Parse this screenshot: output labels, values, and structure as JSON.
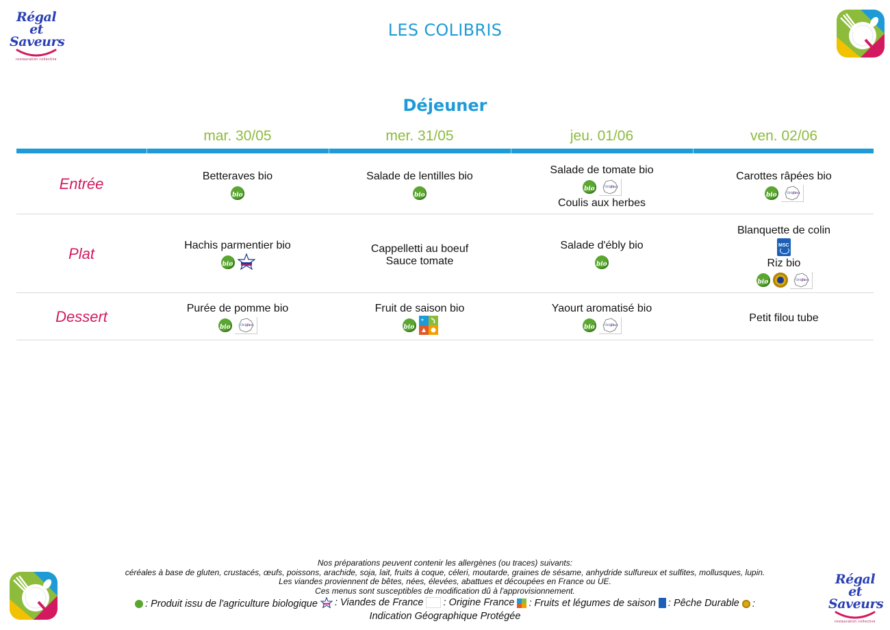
{
  "header": {
    "title": "LES COLIBRIS",
    "brand_line1": "Régal et",
    "brand_line2": "Saveurs",
    "brand_tagline": "restauration collective"
  },
  "meal": {
    "title": "Déjeuner"
  },
  "days": [
    "mar. 30/05",
    "mer. 31/05",
    "jeu. 01/06",
    "ven. 02/06"
  ],
  "courses": [
    "Entrée",
    "Plat",
    "Dessert"
  ],
  "rows": [
    {
      "course": "Entrée",
      "cells": [
        {
          "items": [
            {
              "text": "Betteraves bio",
              "icons": [
                "bio-icon"
              ]
            }
          ]
        },
        {
          "items": [
            {
              "text": "Salade de lentilles bio",
              "icons": [
                "bio-icon"
              ]
            }
          ]
        },
        {
          "items": [
            {
              "text": "Salade de tomate bio",
              "icons": [
                "bio-icon",
                "origine-france-icon"
              ]
            },
            {
              "text": "Coulis aux herbes",
              "icons": []
            }
          ]
        },
        {
          "items": [
            {
              "text": "Carottes râpées bio",
              "icons": [
                "bio-icon",
                "origine-france-icon"
              ]
            }
          ]
        }
      ]
    },
    {
      "course": "Plat",
      "cells": [
        {
          "items": [
            {
              "text": "Hachis parmentier bio",
              "icons": [
                "bio-icon",
                "viandes-de-france-icon"
              ]
            }
          ]
        },
        {
          "items": [
            {
              "text": "Cappelletti au boeuf",
              "icons": []
            },
            {
              "text": "Sauce tomate",
              "icons": []
            }
          ]
        },
        {
          "items": [
            {
              "text": "Salade d'ébly bio",
              "icons": [
                "bio-icon"
              ]
            }
          ]
        },
        {
          "items": [
            {
              "text": "Blanquette de colin",
              "icons": [
                "msc-peche-durable-icon"
              ]
            },
            {
              "text": "Riz bio",
              "icons": [
                "bio-icon",
                "igp-icon",
                "origine-france-icon"
              ]
            }
          ]
        }
      ]
    },
    {
      "course": "Dessert",
      "cells": [
        {
          "items": [
            {
              "text": "Purée de pomme bio",
              "icons": [
                "bio-icon",
                "origine-france-icon"
              ]
            }
          ]
        },
        {
          "items": [
            {
              "text": "Fruit de saison bio",
              "icons": [
                "bio-icon",
                "fruits-legumes-saison-icon"
              ]
            }
          ]
        },
        {
          "items": [
            {
              "text": "Yaourt aromatisé bio",
              "icons": [
                "bio-icon",
                "origine-france-icon"
              ]
            }
          ]
        },
        {
          "items": [
            {
              "text": "Petit filou tube",
              "icons": []
            }
          ]
        }
      ]
    }
  ],
  "footer": {
    "line1": "Nos préparations peuvent contenir les allergènes (ou traces) suivants:",
    "line2": "céréales à base de gluten, crustacés, œufs, poissons, arachide, soja, lait, fruits à coque, céleri, moutarde, graines de sésame, anhydride sulfureux et sulfites, mollusques, lupin.",
    "line3": "Les viandes proviennent de bêtes, nées, élevées, abattues et découpées en France ou UE.",
    "line4": "Ces menus sont susceptibles de modification dû à l'approvisionnement.",
    "legend": {
      "bio": ": Produit issu de l'agriculture biologique",
      "vf": ": Viandes de France",
      "fr": ": Origine France",
      "saison": ": Fruits et légumes de saison",
      "msc": ": Pêche Durable",
      "igp_a": ":",
      "igp_b": "Indication Géographique Protégée"
    }
  }
}
